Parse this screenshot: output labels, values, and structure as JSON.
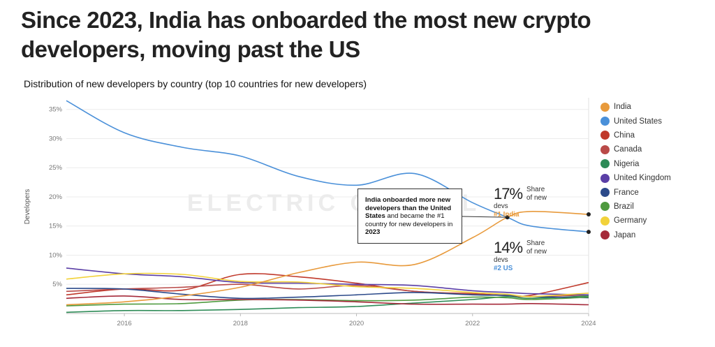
{
  "headline": "Since 2023, India has onboarded the most new crypto developers, moving past the US",
  "subtitle": "Distribution of new developers by country (top 10 countries for new developers)",
  "watermark": "ELECTRIC CAPITAL",
  "callout": {
    "part1": "India onboarded more new developers than the United States",
    "part2": " and became the #1 country for new developers in ",
    "part3": "2023"
  },
  "annotations": {
    "india": {
      "value": "17%",
      "label": "Share of new devs",
      "rank": "#1 India",
      "color": "#e89a3c"
    },
    "us": {
      "value": "14%",
      "label": "Share of new devs",
      "rank": "#2 US",
      "color": "#4a90d9"
    }
  },
  "chart_data": {
    "type": "line",
    "title": "Distribution of new developers by country (top 10 countries for new developers)",
    "xlabel": "",
    "ylabel": "Developers",
    "xlim": [
      2015,
      2024
    ],
    "ylim": [
      0,
      37
    ],
    "x_ticks": [
      "2016",
      "2018",
      "2020",
      "2022",
      "2024"
    ],
    "y_ticks": [
      "5%",
      "10%",
      "15%",
      "20%",
      "25%",
      "30%",
      "35%"
    ],
    "x": [
      2015,
      2016,
      2017,
      2018,
      2019,
      2020,
      2021,
      2022,
      2022.6,
      2023,
      2024
    ],
    "series": [
      {
        "name": "India",
        "color": "#e89a3c",
        "values": [
          1.5,
          2.0,
          3.0,
          4.5,
          7.0,
          8.8,
          8.4,
          13.0,
          16.5,
          17.5,
          17.0
        ]
      },
      {
        "name": "United States",
        "color": "#4a90d9",
        "values": [
          36.5,
          31.0,
          28.5,
          27.0,
          23.5,
          22.0,
          24.0,
          19.0,
          16.5,
          15.0,
          14.0
        ]
      },
      {
        "name": "China",
        "color": "#c0392b",
        "values": [
          3.2,
          4.2,
          4.0,
          6.7,
          6.3,
          5.2,
          3.8,
          3.4,
          3.1,
          3.1,
          5.3
        ]
      },
      {
        "name": "Canada",
        "color": "#b94a48",
        "values": [
          3.8,
          4.2,
          4.5,
          5.0,
          4.2,
          4.8,
          3.8,
          3.3,
          3.1,
          2.9,
          3.2
        ]
      },
      {
        "name": "Nigeria",
        "color": "#2e8b57",
        "values": [
          0.2,
          0.5,
          0.5,
          0.7,
          1.0,
          1.2,
          1.8,
          2.4,
          2.9,
          2.6,
          3.0
        ]
      },
      {
        "name": "United Kingdom",
        "color": "#5b3fa6",
        "values": [
          7.8,
          6.8,
          6.3,
          5.3,
          5.2,
          5.0,
          4.8,
          3.9,
          3.6,
          3.4,
          3.2
        ]
      },
      {
        "name": "France",
        "color": "#2c4a8a",
        "values": [
          4.3,
          4.2,
          3.3,
          2.6,
          2.8,
          3.2,
          3.6,
          3.2,
          3.1,
          2.9,
          2.7
        ]
      },
      {
        "name": "Brazil",
        "color": "#4f9a3f",
        "values": [
          1.3,
          1.6,
          1.7,
          2.3,
          2.4,
          2.2,
          2.3,
          2.8,
          2.7,
          2.4,
          2.8
        ]
      },
      {
        "name": "Germany",
        "color": "#f2d23a",
        "values": [
          5.9,
          6.8,
          6.7,
          5.5,
          5.4,
          4.6,
          4.3,
          3.6,
          3.3,
          2.9,
          3.5
        ]
      },
      {
        "name": "Japan",
        "color": "#a52a3a",
        "values": [
          2.6,
          3.0,
          2.4,
          2.4,
          2.3,
          2.0,
          1.6,
          1.6,
          1.6,
          1.7,
          1.5
        ]
      }
    ]
  }
}
